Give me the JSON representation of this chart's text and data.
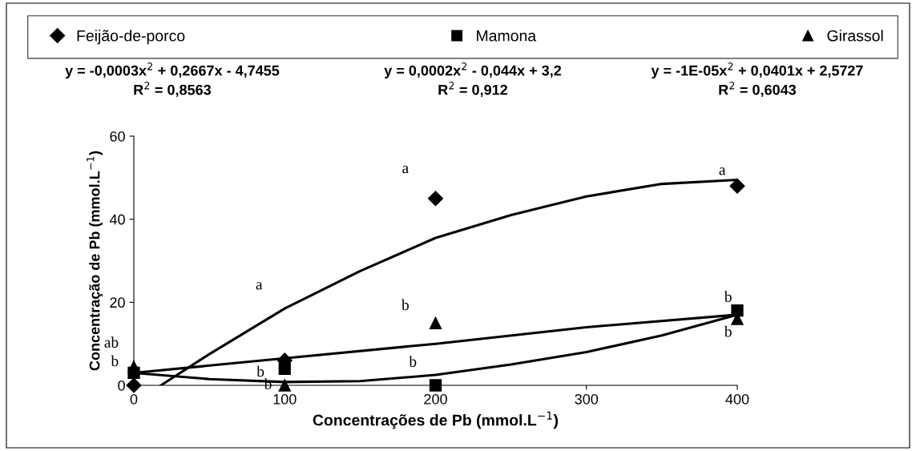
{
  "chart_data": {
    "type": "scatter",
    "xlabel": "Concentrações de Pb (mmol.L$^{−1}$)",
    "ylabel": "Concentração de Pb (mmol.L$^{−1}$)",
    "x": [
      0,
      100,
      200,
      400
    ],
    "xlim": [
      0,
      400
    ],
    "xticks": [
      0,
      100,
      200,
      300,
      400
    ],
    "ylim": [
      0,
      60
    ],
    "yticks": [
      0,
      20,
      40,
      60
    ],
    "grid": false,
    "legend": "top",
    "series": [
      {
        "name": "Feijão-de-porco",
        "color": "#000000",
        "marker": "diamond",
        "values": [
          0,
          6,
          45,
          48
        ]
      },
      {
        "name": "Mamona",
        "color": "#000000",
        "marker": "square",
        "values": [
          3,
          4,
          0,
          18
        ]
      },
      {
        "name": "Girassol",
        "color": "#000000",
        "marker": "triangle",
        "values": [
          4.5,
          0,
          15,
          16
        ]
      },
      {
        "type": "line",
        "color": "#000000",
        "marker": "none",
        "x": [
          18,
          50,
          100,
          150,
          200,
          250,
          300,
          350,
          400
        ],
        "values": [
          0,
          7.5,
          18.5,
          27.5,
          35.5,
          41,
          45.5,
          48.5,
          49.5
        ]
      },
      {
        "type": "line",
        "color": "#000000",
        "marker": "none",
        "x": [
          0,
          50,
          100,
          150,
          200,
          250,
          300,
          350,
          400
        ],
        "values": [
          3,
          1.5,
          0.8,
          1,
          2.5,
          5,
          8,
          12,
          17
        ]
      },
      {
        "type": "line",
        "color": "#000000",
        "marker": "none",
        "x": [
          0,
          100,
          200,
          300,
          400
        ],
        "values": [
          3,
          6.5,
          10,
          14,
          17
        ]
      }
    ],
    "annotations": [
      "y = -0,0003x$^{2}$ + 0,2667x - 4,7455\nR$^{2}$ = 0,8563",
      "y = 0,0002x$^{2}$ - 0,044x + 3,2\nR$^{2}$ = 0,912",
      "y = -1E-05x$^{2}$ + 0,0401x + 2,5727\nR$^{2}$ = 0,6043",
      "a",
      "a",
      "a",
      "b",
      "b",
      "b",
      "ab",
      "b",
      "b",
      "b",
      "b"
    ]
  }
}
